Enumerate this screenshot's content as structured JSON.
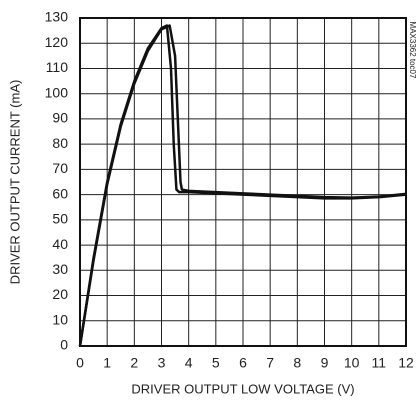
{
  "chart_data": {
    "type": "line",
    "xlabel": "DRIVER OUTPUT LOW VOLTAGE (V)",
    "ylabel": "DRIVER OUTPUT CURRENT (mA)",
    "annotation": "MAX3362 toc07",
    "xlim": [
      0,
      12
    ],
    "xticks": [
      0,
      1,
      2,
      3,
      4,
      5,
      6,
      7,
      8,
      9,
      10,
      11,
      12
    ],
    "ylim": [
      0,
      130
    ],
    "yticks": [
      0,
      10,
      20,
      30,
      40,
      50,
      60,
      70,
      80,
      90,
      100,
      110,
      120,
      130
    ],
    "grid": true,
    "series": [
      {
        "color": "#111111",
        "x": [
          0,
          0.5,
          1,
          1.5,
          2,
          2.5,
          3,
          3.2,
          3.35,
          3.45,
          3.55,
          3.65,
          4,
          5,
          6,
          7,
          8,
          9,
          10,
          11,
          12
        ],
        "values": [
          0,
          35,
          65,
          88,
          105,
          118,
          126,
          127,
          110,
          80,
          62,
          61,
          61,
          60.5,
          60,
          59.5,
          59,
          58.5,
          58.5,
          59,
          60
        ]
      },
      {
        "color": "#111111",
        "x": [
          0,
          0.5,
          1,
          1.5,
          2,
          2.5,
          3,
          3.3,
          3.5,
          3.6,
          3.7,
          3.75,
          4,
          5,
          6,
          7,
          8,
          9,
          10,
          11,
          12
        ],
        "values": [
          0,
          34,
          64,
          87,
          104,
          117,
          125.5,
          127,
          115,
          90,
          65,
          62,
          61.5,
          61,
          60.5,
          60,
          59.5,
          59,
          58.8,
          59.2,
          60.3
        ]
      }
    ]
  }
}
